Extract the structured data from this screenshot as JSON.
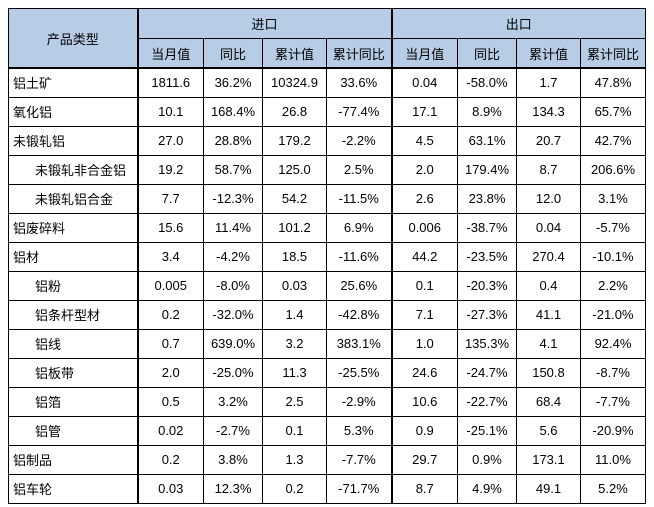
{
  "table": {
    "corner_header": "产品类型",
    "groups": [
      "进口",
      "出口"
    ],
    "subheaders": [
      "当月值",
      "同比",
      "累计值",
      "累计同比",
      "当月值",
      "同比",
      "累计值",
      "累计同比"
    ],
    "rows": [
      {
        "name": "铝土矿",
        "indent": false,
        "cells": [
          "1811.6",
          "36.2%",
          "10324.9",
          "33.6%",
          "0.04",
          "-58.0%",
          "1.7",
          "47.8%"
        ]
      },
      {
        "name": "氧化铝",
        "indent": false,
        "cells": [
          "10.1",
          "168.4%",
          "26.8",
          "-77.4%",
          "17.1",
          "8.9%",
          "134.3",
          "65.7%"
        ]
      },
      {
        "name": "未锻轧铝",
        "indent": false,
        "cells": [
          "27.0",
          "28.8%",
          "179.2",
          "-2.2%",
          "4.5",
          "63.1%",
          "20.7",
          "42.7%"
        ]
      },
      {
        "name": "未锻轧非合金铝",
        "indent": true,
        "cells": [
          "19.2",
          "58.7%",
          "125.0",
          "2.5%",
          "2.0",
          "179.4%",
          "8.7",
          "206.6%"
        ]
      },
      {
        "name": "未锻轧铝合金",
        "indent": true,
        "cells": [
          "7.7",
          "-12.3%",
          "54.2",
          "-11.5%",
          "2.6",
          "23.8%",
          "12.0",
          "3.1%"
        ]
      },
      {
        "name": "铝废碎料",
        "indent": false,
        "cells": [
          "15.6",
          "11.4%",
          "101.2",
          "6.9%",
          "0.006",
          "-38.7%",
          "0.04",
          "-5.7%"
        ]
      },
      {
        "name": "铝材",
        "indent": false,
        "cells": [
          "3.4",
          "-4.2%",
          "18.5",
          "-11.6%",
          "44.2",
          "-23.5%",
          "270.4",
          "-10.1%"
        ]
      },
      {
        "name": "铝粉",
        "indent": true,
        "cells": [
          "0.005",
          "-8.0%",
          "0.03",
          "25.6%",
          "0.1",
          "-20.3%",
          "0.4",
          "2.2%"
        ]
      },
      {
        "name": "铝条杆型材",
        "indent": true,
        "cells": [
          "0.2",
          "-32.0%",
          "1.4",
          "-42.8%",
          "7.1",
          "-27.3%",
          "41.1",
          "-21.0%"
        ]
      },
      {
        "name": "铝线",
        "indent": true,
        "cells": [
          "0.7",
          "639.0%",
          "3.2",
          "383.1%",
          "1.0",
          "135.3%",
          "4.1",
          "92.4%"
        ]
      },
      {
        "name": "铝板带",
        "indent": true,
        "cells": [
          "2.0",
          "-25.0%",
          "11.3",
          "-25.5%",
          "24.6",
          "-24.7%",
          "150.8",
          "-8.7%"
        ]
      },
      {
        "name": "铝箔",
        "indent": true,
        "cells": [
          "0.5",
          "3.2%",
          "2.5",
          "-2.9%",
          "10.6",
          "-22.7%",
          "68.4",
          "-7.7%"
        ]
      },
      {
        "name": "铝管",
        "indent": true,
        "cells": [
          "0.02",
          "-2.7%",
          "0.1",
          "5.3%",
          "0.9",
          "-25.1%",
          "5.6",
          "-20.9%"
        ]
      },
      {
        "name": "铝制品",
        "indent": false,
        "cells": [
          "0.2",
          "3.8%",
          "1.3",
          "-7.7%",
          "29.7",
          "0.9%",
          "173.1",
          "11.0%"
        ]
      },
      {
        "name": "铝车轮",
        "indent": false,
        "cells": [
          "0.03",
          "12.3%",
          "0.2",
          "-71.7%",
          "8.7",
          "4.9%",
          "49.1",
          "5.2%"
        ]
      }
    ]
  },
  "colors": {
    "header_bg": "#b7cde6",
    "grid": "#000000"
  }
}
